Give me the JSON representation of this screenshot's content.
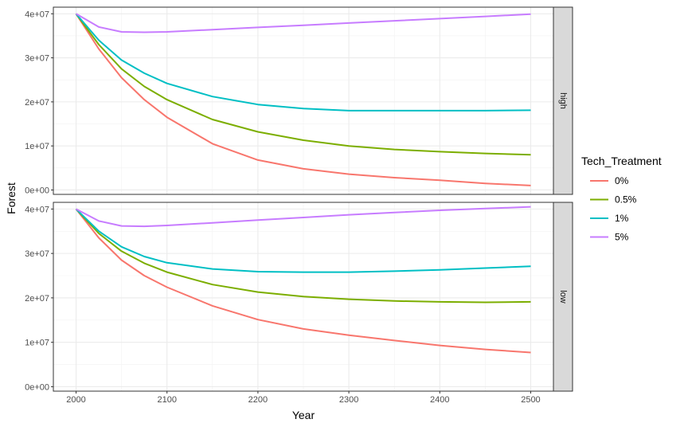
{
  "chart_data": {
    "type": "line",
    "xlabel": "Year",
    "ylabel": "Forest",
    "xlim": [
      1975,
      2525
    ],
    "ylim": [
      -1000000,
      41500000
    ],
    "x_ticks": [
      2000,
      2100,
      2200,
      2300,
      2400,
      2500
    ],
    "x_tick_labels": [
      "2000",
      "2100",
      "2200",
      "2300",
      "2400",
      "2500"
    ],
    "y_ticks": [
      0,
      10000000,
      20000000,
      30000000,
      40000000
    ],
    "y_tick_labels": [
      "0e+00",
      "1e+07",
      "2e+07",
      "3e+07",
      "4e+07"
    ],
    "grid": true,
    "legend": {
      "title": "Tech_Treatment",
      "position": "right",
      "entries": [
        {
          "label": "0%",
          "color": "#F8766D"
        },
        {
          "label": "0.5%",
          "color": "#7CAE00"
        },
        {
          "label": "1%",
          "color": "#00BFC4"
        },
        {
          "label": "5%",
          "color": "#C77CFF"
        }
      ]
    },
    "x": [
      2000,
      2025,
      2050,
      2075,
      2100,
      2150,
      2200,
      2250,
      2300,
      2350,
      2400,
      2450,
      2500
    ],
    "panels": [
      {
        "strip": "high",
        "series": [
          {
            "name": "0%",
            "color": "#F8766D",
            "values": [
              40000000,
              32000000,
              25500000,
              20500000,
              16500000,
              10500000,
              6800000,
              4800000,
              3600000,
              2800000,
              2200000,
              1500000,
              1000000
            ]
          },
          {
            "name": "0.5%",
            "color": "#7CAE00",
            "values": [
              40000000,
              33000000,
              27500000,
              23500000,
              20500000,
              16000000,
              13200000,
              11300000,
              10000000,
              9200000,
              8700000,
              8300000,
              8000000
            ]
          },
          {
            "name": "1%",
            "color": "#00BFC4",
            "values": [
              40000000,
              34000000,
              29500000,
              26500000,
              24200000,
              21200000,
              19400000,
              18500000,
              18000000,
              18000000,
              18000000,
              18000000,
              18100000
            ]
          },
          {
            "name": "5%",
            "color": "#C77CFF",
            "values": [
              40000000,
              37000000,
              35900000,
              35800000,
              35900000,
              36400000,
              36900000,
              37400000,
              37900000,
              38400000,
              38900000,
              39400000,
              39900000
            ]
          }
        ]
      },
      {
        "strip": "low",
        "series": [
          {
            "name": "0%",
            "color": "#F8766D",
            "values": [
              40000000,
              33500000,
              28500000,
              25000000,
              22400000,
              18200000,
              15100000,
              13000000,
              11600000,
              10400000,
              9300000,
              8400000,
              7700000
            ]
          },
          {
            "name": "0.5%",
            "color": "#7CAE00",
            "values": [
              40000000,
              34500000,
              30500000,
              27800000,
              25800000,
              23000000,
              21300000,
              20300000,
              19700000,
              19300000,
              19100000,
              19000000,
              19100000
            ]
          },
          {
            "name": "1%",
            "color": "#00BFC4",
            "values": [
              40000000,
              35000000,
              31500000,
              29300000,
              27900000,
              26500000,
              25900000,
              25800000,
              25800000,
              26000000,
              26300000,
              26700000,
              27100000
            ]
          },
          {
            "name": "5%",
            "color": "#C77CFF",
            "values": [
              40000000,
              37300000,
              36200000,
              36100000,
              36300000,
              36900000,
              37500000,
              38100000,
              38700000,
              39200000,
              39700000,
              40100000,
              40500000
            ]
          }
        ]
      }
    ]
  }
}
